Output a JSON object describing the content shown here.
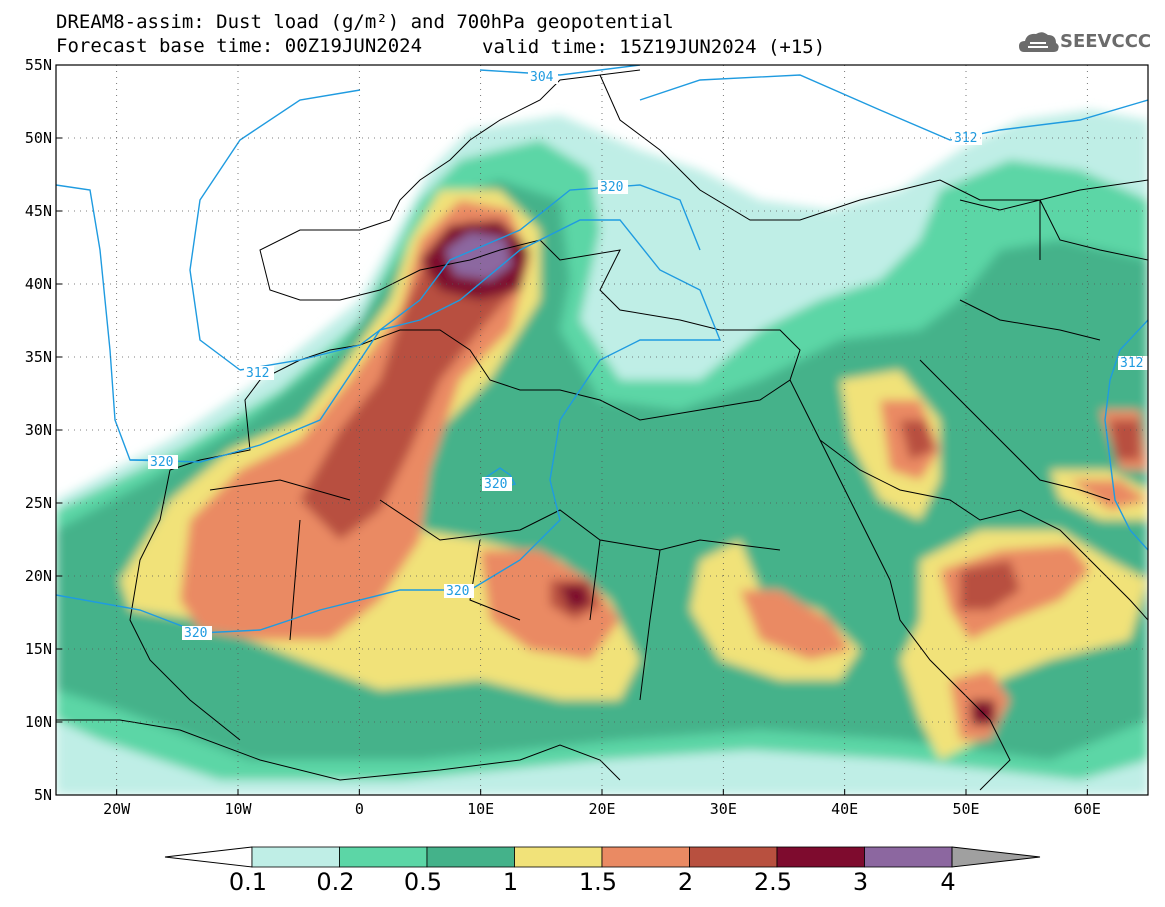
{
  "title": {
    "line1": "DREAM8-assim: Dust load (g/m²) and 700hPa geopotential",
    "line2_left": "Forecast base time: 00Z19JUN2024",
    "line2_right": "valid time: 15Z19JUN2024 (+15)"
  },
  "logo": {
    "text": "SEEVCCC",
    "icon": "cloud-logo-icon"
  },
  "axes": {
    "lat_ticks": [
      "55N",
      "50N",
      "45N",
      "40N",
      "35N",
      "30N",
      "25N",
      "20N",
      "15N",
      "10N",
      "5N"
    ],
    "lon_ticks": [
      "20W",
      "10W",
      "0",
      "10E",
      "20E",
      "30E",
      "40E",
      "50E",
      "60E"
    ],
    "lat_range": [
      5,
      55
    ],
    "lon_range": [
      -25,
      65
    ]
  },
  "contours": {
    "color": "#1f9be0",
    "labels": [
      "304",
      "312",
      "312",
      "320",
      "320",
      "320",
      "320",
      "312",
      "320"
    ]
  },
  "colorbar": {
    "tick_labels": [
      "0.1",
      "0.2",
      "0.5",
      "1",
      "1.5",
      "2",
      "2.5",
      "3",
      "4"
    ],
    "colors": [
      "#bfeee6",
      "#5cd6a6",
      "#44b28a",
      "#f1e279",
      "#ea8a63",
      "#b8503f",
      "#7e0b2e",
      "#8c67a0"
    ],
    "under_color": "#ffffff",
    "over_color": "#a0a0a0"
  }
}
